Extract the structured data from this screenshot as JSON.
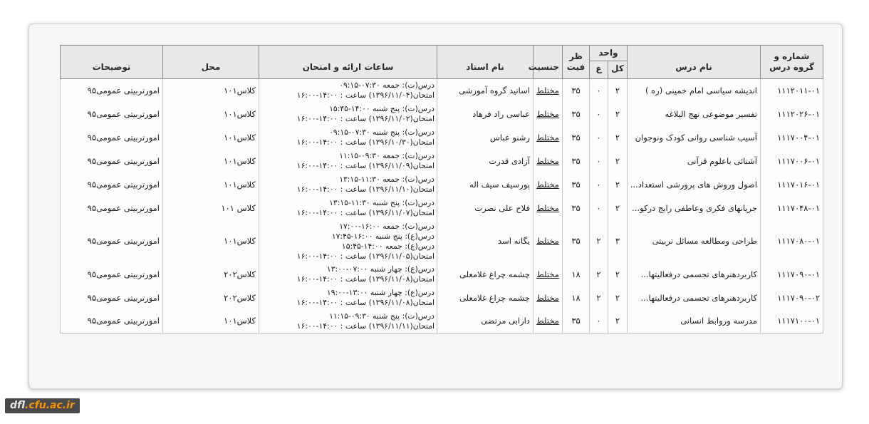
{
  "watermark": {
    "prefix": "dfl",
    "suffix": ".cfu.ac.ir",
    "bg_color": "#4a4a4a",
    "prefix_color": "#e9e9e9",
    "suffix_color": "#f89406"
  },
  "colors": {
    "card_bg": "#f6f6f6",
    "header_bg": "#e8e8e8",
    "header_border": "#8a8a8a",
    "body_border": "#c6c6c6",
    "text": "#1c1c1c"
  },
  "table": {
    "headers": {
      "code": "شماره و گروه درس",
      "name": "نام درس",
      "unit_group": "واحد",
      "unit_total": "کل",
      "unit_practical": "ع",
      "capacity_line1": "ظر",
      "capacity_line2": "فیت",
      "gender": "جنسیت",
      "instructor": "نام استاد",
      "schedule": "ساعات ارائه و امتحان",
      "location": "محل",
      "notes": "توضیحات"
    },
    "rows": [
      {
        "code": "۱۱۱۲۰۱۱-۰۱",
        "name": "اندیشه سیاسی امام خمینی (ره )",
        "unit_total": "۲",
        "unit_practical": "۰",
        "capacity": "۳۵",
        "gender": "مختلط",
        "instructor": "اساتید گروه آموزشی",
        "schedule": [
          "درس(ت): جمعه ۰۷:۳۰-۰۹:۱۵",
          "امتحان(۱۳۹۶/۱۱/۰۴) ساعت : ۱۴:۰۰-۱۶:۰۰"
        ],
        "location": "کلاس۱۰۱",
        "notes": "امورتربیتی عمومی۹۵"
      },
      {
        "code": "۱۱۱۲۰۲۶-۰۱",
        "name": "تفسیر موضوعی نهج البلاغه",
        "unit_total": "۲",
        "unit_practical": "۰",
        "capacity": "۳۵",
        "gender": "مختلط",
        "instructor": "عباسی راد فرهاد",
        "schedule": [
          "درس(ت): پنج شنبه ۱۴:۰۰-۱۵:۴۵",
          "امتحان(۱۳۹۶/۱۱/۰۲) ساعت : ۱۴:۰۰-۱۶:۰۰"
        ],
        "location": "کلاس۱۰۱",
        "notes": "امورتربیتی عمومی۹۵"
      },
      {
        "code": "۱۱۱۷۰۰۴-۰۱",
        "name": "آسیب شناسی روانی کودک ونوجوان",
        "unit_total": "۲",
        "unit_practical": "۰",
        "capacity": "۳۵",
        "gender": "مختلط",
        "instructor": "رشنو عباس",
        "schedule": [
          "درس(ت): پنج شنبه ۰۷:۳۰-۰۹:۱۵",
          "امتحان(۱۳۹۶/۱۰/۳۰) ساعت : ۱۴:۰۰-۱۶:۰۰"
        ],
        "location": "کلاس۱۰۱",
        "notes": "امورتربیتی عمومی۹۵"
      },
      {
        "code": "۱۱۱۷۰۰۶-۰۱",
        "name": "آشنائی باعلوم قرآنی",
        "unit_total": "۲",
        "unit_practical": "۰",
        "capacity": "۳۵",
        "gender": "مختلط",
        "instructor": "آزادی قدرت",
        "schedule": [
          "درس(ت): جمعه ۰۹:۳۰-۱۱:۱۵",
          "امتحان(۱۳۹۶/۱۱/۰۹) ساعت : ۱۴:۰۰-۱۶:۰۰"
        ],
        "location": "کلاس۱۰۱",
        "notes": "امورتربیتی عمومی۹۵"
      },
      {
        "code": "۱۱۱۷۰۱۶-۰۱",
        "name": "اصول وروش های پرورشی استعداد...",
        "unit_total": "۲",
        "unit_practical": "۰",
        "capacity": "۳۵",
        "gender": "مختلط",
        "instructor": "پورسیف سیف اله",
        "schedule": [
          "درس(ت): جمعه ۱۱:۳۰-۱۳:۱۵",
          "امتحان(۱۳۹۶/۱۱/۱۰) ساعت : ۱۴:۰۰-۱۶:۰۰"
        ],
        "location": "کلاس۱۰۱",
        "notes": "امورتربیتی عمومی۹۵"
      },
      {
        "code": "۱۱۱۷۰۴۸-۰۱",
        "name": "جریانهای فکری وعاطفی رایج درکو...",
        "unit_total": "۲",
        "unit_practical": "۰",
        "capacity": "۳۵",
        "gender": "مختلط",
        "instructor": "فلاح علی نصرت",
        "schedule": [
          "درس(ت): پنج شنبه ۱۱:۳۰-۱۳:۱۵",
          "امتحان(۱۳۹۶/۱۱/۰۷) ساعت : ۱۴:۰۰-۱۶:۰۰"
        ],
        "location": "کلاس ۱۰۱",
        "notes": "امورتربیتی عمومی۹۵"
      },
      {
        "code": "۱۱۱۷۰۸۰-۰۱",
        "name": "طراحی ومطالعه مسائل تربیتی",
        "unit_total": "۳",
        "unit_practical": "۲",
        "capacity": "۳۵",
        "gender": "مختلط",
        "instructor": "یگانه اسد",
        "schedule": [
          "درس(ت): جمعه ۱۶:۰۰-۱۷:۰۰",
          "درس(ع): پنج شنبه ۱۶:۰۰-۱۷:۴۵",
          "درس(ع): جمعه ۱۴:۰۰-۱۵:۴۵",
          "امتحان(۱۳۹۶/۱۱/۰۵) ساعت : ۱۴:۰۰-۱۶:۰۰"
        ],
        "location": "کلاس۱۰۱",
        "notes": "امورتربیتی عمومی۹۵"
      },
      {
        "code": "۱۱۱۷۰۹۰-۰۱",
        "name": "کاربردهنرهای تجسمی درفعالیتها...",
        "unit_total": "۲",
        "unit_practical": "۲",
        "capacity": "۱۸",
        "gender": "مختلط",
        "instructor": "چشمه چراغ غلامعلی",
        "schedule": [
          "درس(ع): چهار شنبه ۰۷:۰۰-۱۳:۰۰",
          "امتحان(۱۳۹۶/۱۱/۰۸) ساعت : ۱۴:۰۰-۱۶:۰۰"
        ],
        "location": "کلاس۲۰۲",
        "notes": "امورتربیتی عمومی۹۵"
      },
      {
        "code": "۱۱۱۷۰۹۰-۰۲",
        "name": "کاربردهنرهای تجسمی درفعالیتها...",
        "unit_total": "۲",
        "unit_practical": "۲",
        "capacity": "۱۸",
        "gender": "مختلط",
        "instructor": "چشمه چراغ غلامعلی",
        "schedule": [
          "درس(ع): چهار شنبه ۱۳:۰۰-۱۹:۰۰",
          "امتحان(۱۳۹۶/۱۱/۰۸) ساعت : ۱۴:۰۰-۱۶:۰۰"
        ],
        "location": "کلاس۲۰۲",
        "notes": "امورتربیتی عمومی۹۵"
      },
      {
        "code": "۱۱۱۷۱۰۰-۰۱",
        "name": "مدرسه وروابط انسانی",
        "unit_total": "۲",
        "unit_practical": "۰",
        "capacity": "۳۵",
        "gender": "مختلط",
        "instructor": "دارابی مرتضی",
        "schedule": [
          "درس(ت): پنج شنبه ۰۹:۳۰-۱۱:۱۵",
          "امتحان(۱۳۹۶/۱۱/۱۱) ساعت : ۱۴:۰۰-۱۶:۰۰"
        ],
        "location": "کلاس۱۰۱",
        "notes": "امورتربیتی عمومی۹۵"
      }
    ]
  }
}
